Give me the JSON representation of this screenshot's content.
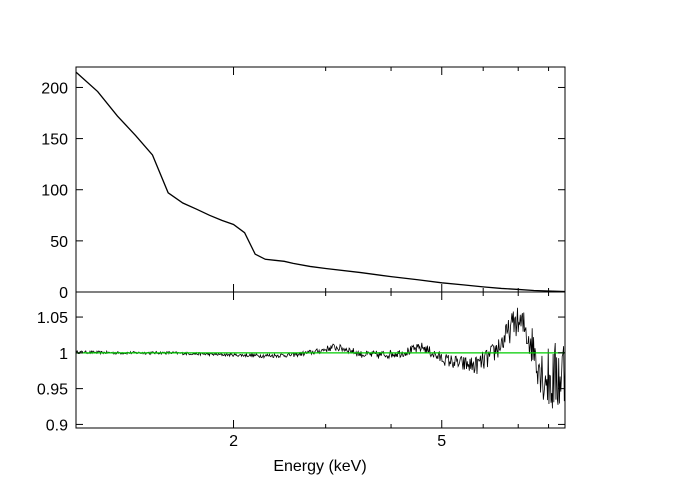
{
  "chart_data": [
    {
      "type": "line",
      "panel": "top",
      "xlabel": "",
      "ylabel": "",
      "x_scale": "log",
      "xlim": [
        1.0,
        8.6
      ],
      "ylim": [
        0,
        220
      ],
      "y_ticks": [
        "0",
        "50",
        "100",
        "150",
        "200"
      ],
      "y_tick_values": [
        0,
        50,
        100,
        150,
        200
      ],
      "series": [
        {
          "color": "#000000",
          "x": [
            1.0,
            1.1,
            1.2,
            1.3,
            1.4,
            1.5,
            1.6,
            1.7,
            1.8,
            1.9,
            2.0,
            2.1,
            2.2,
            2.3,
            2.4,
            2.5,
            2.6,
            2.8,
            3.0,
            3.5,
            4.0,
            4.5,
            5.0,
            5.5,
            6.0,
            6.5,
            7.0,
            7.5,
            8.0,
            8.6
          ],
          "y": [
            215,
            196,
            172,
            153,
            134,
            97,
            87,
            81,
            75,
            70,
            66,
            58,
            37,
            32,
            31,
            30,
            28,
            25,
            23,
            19,
            15,
            12,
            9,
            7,
            5,
            3.5,
            2.5,
            1.5,
            1,
            0.5
          ]
        }
      ]
    },
    {
      "type": "line",
      "panel": "bottom",
      "xlabel": "Energy (keV)",
      "ylabel": "",
      "x_scale": "log",
      "xlim": [
        1.0,
        8.6
      ],
      "ylim": [
        0.895,
        1.085
      ],
      "x_ticks": [
        "2",
        "5"
      ],
      "x_tick_values": [
        2,
        5
      ],
      "y_ticks": [
        "0.9",
        "0.95",
        "1",
        "1.05"
      ],
      "y_tick_values": [
        0.9,
        0.95,
        1.0,
        1.05
      ],
      "series": [
        {
          "color": "#000000",
          "x": [
            1.0,
            1.2,
            1.5,
            1.8,
            2.0,
            2.3,
            2.6,
            2.9,
            3.1,
            3.3,
            3.5,
            3.8,
            4.2,
            4.6,
            4.9,
            5.1,
            5.4,
            5.8,
            6.2,
            6.6,
            6.9,
            7.2,
            7.5,
            7.8,
            8.1,
            8.6
          ],
          "y": [
            1.001,
            1.0,
            1.0,
            0.998,
            0.997,
            0.996,
            0.997,
            1.002,
            1.008,
            1.005,
            0.998,
            0.997,
            1.0,
            1.008,
            0.995,
            0.99,
            0.985,
            0.982,
            0.995,
            1.02,
            1.045,
            1.035,
            1.005,
            0.97,
            0.96,
            0.975
          ],
          "noise": [
            0.002,
            0.002,
            0.002,
            0.002,
            0.002,
            0.003,
            0.003,
            0.004,
            0.005,
            0.005,
            0.005,
            0.006,
            0.006,
            0.007,
            0.008,
            0.009,
            0.011,
            0.013,
            0.015,
            0.018,
            0.02,
            0.025,
            0.03,
            0.04,
            0.05,
            0.06
          ]
        },
        {
          "color": "#00cc00",
          "x": [
            1.0,
            8.6
          ],
          "y": [
            1.0,
            1.0
          ]
        }
      ]
    }
  ]
}
